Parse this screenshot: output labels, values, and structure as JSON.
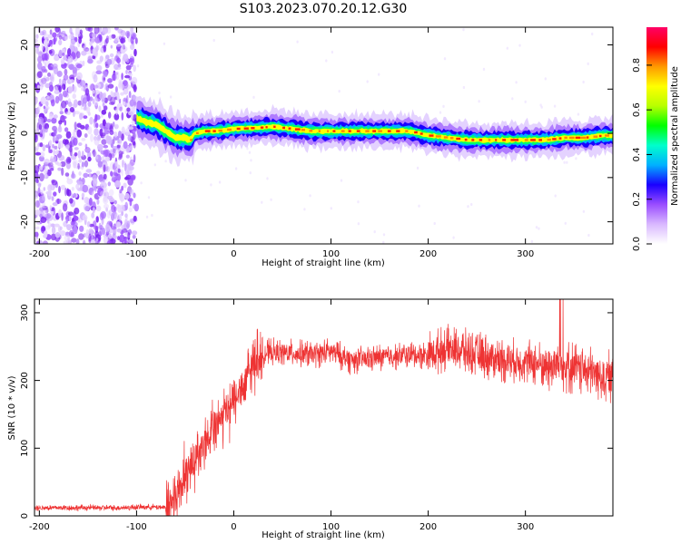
{
  "title": "S103.2023.070.20.12.G30",
  "chart_data": [
    {
      "type": "heatmap",
      "xlabel": "Height of straight line (km)",
      "ylabel": "Frequency (Hz)",
      "xlim": [
        -205,
        390
      ],
      "ylim": [
        -25,
        24
      ],
      "xticks": [
        -200,
        -100,
        0,
        100,
        200,
        300
      ],
      "xtick_labels": [
        "-200",
        "-100",
        "0",
        "100",
        "200",
        "300"
      ],
      "yticks": [
        -20,
        -10,
        0,
        10,
        20
      ],
      "ytick_labels": [
        "-20",
        "-10",
        "0",
        "10",
        "20"
      ],
      "grid": false,
      "noise_region_x": [
        -205,
        -100
      ],
      "ridge": {
        "x": [
          -100,
          -90,
          -80,
          -70,
          -60,
          -50,
          -45,
          -40,
          -30,
          -20,
          0,
          20,
          40,
          60,
          80,
          100,
          120,
          140,
          160,
          180,
          200,
          220,
          240,
          260,
          280,
          300,
          320,
          340,
          360,
          380,
          390
        ],
        "freq": [
          3.5,
          2.5,
          2,
          0.5,
          -1,
          -1,
          -1.5,
          0,
          0.5,
          0.5,
          1,
          1.2,
          1.5,
          1,
          0.5,
          0.5,
          0.5,
          0.5,
          0.5,
          0.5,
          -0.5,
          -1,
          -1.5,
          -1.5,
          -1.5,
          -1.5,
          -1.5,
          -1,
          -1,
          -0.5,
          -0.5
        ]
      },
      "colorbar": {
        "label": "Normalized spectral amplitude",
        "ticks": [
          0.0,
          0.2,
          0.4,
          0.6,
          0.8
        ],
        "tick_labels": [
          "0.0",
          "0.2",
          "0.4",
          "0.6",
          "0.8"
        ],
        "range": [
          0,
          0.97
        ],
        "colors": [
          "#ffffff",
          "#d9b8ff",
          "#9a4dff",
          "#1a00ff",
          "#00b0ff",
          "#00ffcc",
          "#00ff00",
          "#b8ff00",
          "#ffff00",
          "#ff9900",
          "#ff0000",
          "#ff0066"
        ]
      }
    },
    {
      "type": "line",
      "xlabel": "Height of straight line (km)",
      "ylabel": "SNR (10 * v/v)",
      "xlim": [
        -205,
        390
      ],
      "ylim": [
        0,
        320
      ],
      "xticks": [
        -200,
        -100,
        0,
        100,
        200,
        300
      ],
      "xtick_labels": [
        "-200",
        "-100",
        "0",
        "100",
        "200",
        "300"
      ],
      "yticks": [
        0,
        100,
        200,
        300
      ],
      "ytick_labels": [
        "0",
        "100",
        "200",
        "300"
      ],
      "grid": false,
      "series": [
        {
          "color": "#ee3333",
          "x": [
            -205,
            -180,
            -150,
            -120,
            -90,
            -70,
            -60,
            -50,
            -40,
            -30,
            -20,
            -10,
            0,
            10,
            20,
            30,
            40,
            60,
            80,
            100,
            120,
            140,
            160,
            180,
            200,
            220,
            240,
            260,
            280,
            300,
            320,
            340,
            360,
            380,
            390
          ],
          "values": [
            12,
            12,
            12,
            12,
            13,
            13,
            28,
            55,
            85,
            110,
            130,
            150,
            165,
            195,
            225,
            240,
            242,
            240,
            238,
            243,
            230,
            232,
            235,
            238,
            238,
            248,
            242,
            235,
            230,
            228,
            222,
            222,
            215,
            205,
            205
          ]
        }
      ]
    }
  ]
}
